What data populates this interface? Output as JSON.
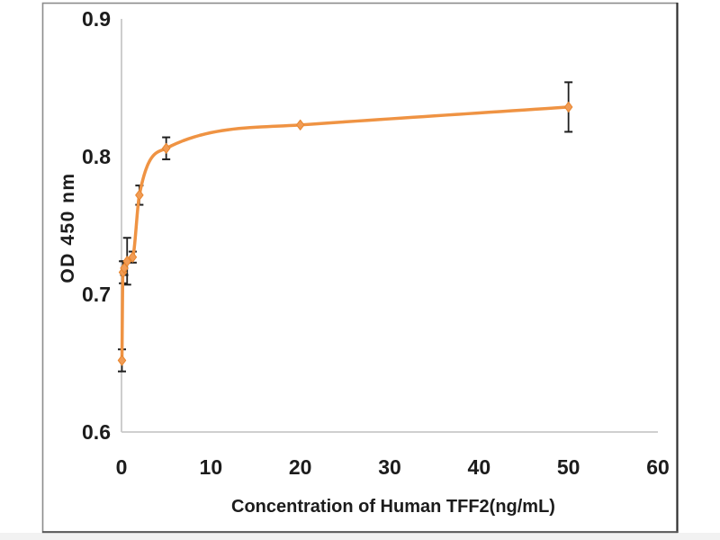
{
  "chart_data": {
    "type": "line",
    "title": "",
    "xlabel": "Concentration of Human TFF2(ng/mL)",
    "ylabel": "OD 450 nm",
    "xlim": [
      0,
      60
    ],
    "ylim": [
      0.6,
      0.9
    ],
    "x_ticks": [
      0,
      10,
      20,
      30,
      40,
      50,
      60
    ],
    "y_ticks": [
      0.9,
      0.8,
      0.7,
      0.6
    ],
    "y_tick_labels": [
      "0.9",
      "0.8",
      "0.7",
      "0.6"
    ],
    "grid": false,
    "legend_position": "none",
    "series": [
      {
        "marker": "diamond",
        "line_color": "#EF9343",
        "marker_fill": "#F19C55",
        "marker_stroke": "#E8862F",
        "error_bar_color": "#1f1f1f",
        "points": [
          {
            "x": 0.05,
            "y": 0.652,
            "err": 0.008
          },
          {
            "x": 0.16,
            "y": 0.716,
            "err": 0.008
          },
          {
            "x": 0.31,
            "y": 0.719,
            "err": 0.005
          },
          {
            "x": 0.63,
            "y": 0.724,
            "err": 0.017
          },
          {
            "x": 1.25,
            "y": 0.727,
            "err": 0.004
          },
          {
            "x": 2,
            "y": 0.772,
            "err": 0.007
          },
          {
            "x": 5,
            "y": 0.806,
            "err": 0.008
          },
          {
            "x": 20,
            "y": 0.823,
            "err": 0.002
          },
          {
            "x": 50,
            "y": 0.836,
            "err": 0.018
          }
        ]
      }
    ]
  },
  "colors": {
    "axis_line": "#c9c9c9",
    "text": "#1c1c1c",
    "frame_border": "#8c8c8c",
    "frame_border_right": "#2e2e2e",
    "frame_border_bottom": "#555555",
    "bottom_strip": "#f2f2f2",
    "background": "#ffffff"
  }
}
